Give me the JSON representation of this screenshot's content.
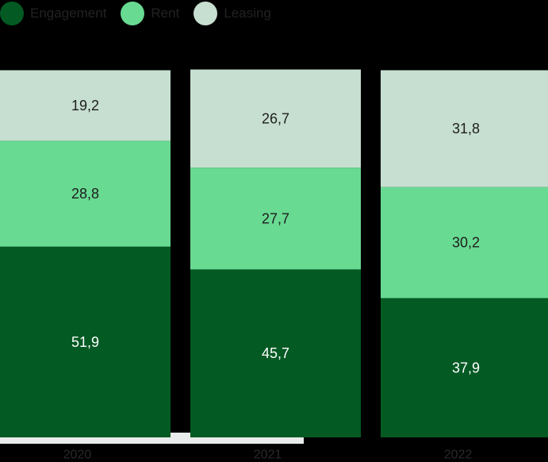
{
  "chart_data": {
    "type": "bar",
    "stacked": true,
    "normalized": true,
    "categories": [
      "2020",
      "2021",
      "2022"
    ],
    "series": [
      {
        "name": "Engagement",
        "color": "#045A23",
        "values": [
          51.9,
          45.7,
          37.9
        ],
        "labels": [
          "51,9",
          "45,7",
          "37,9"
        ]
      },
      {
        "name": "Rent",
        "color": "#68DA92",
        "values": [
          28.8,
          27.7,
          30.2
        ],
        "labels": [
          "28,8",
          "27,7",
          "30,2"
        ]
      },
      {
        "name": "Leasing",
        "color": "#C7DFD0",
        "values": [
          19.2,
          26.7,
          31.8
        ],
        "labels": [
          "19,2",
          "26,7",
          "31,8"
        ]
      }
    ],
    "ylim": [
      0,
      100
    ],
    "legend_position": "top-left",
    "grid": false
  }
}
